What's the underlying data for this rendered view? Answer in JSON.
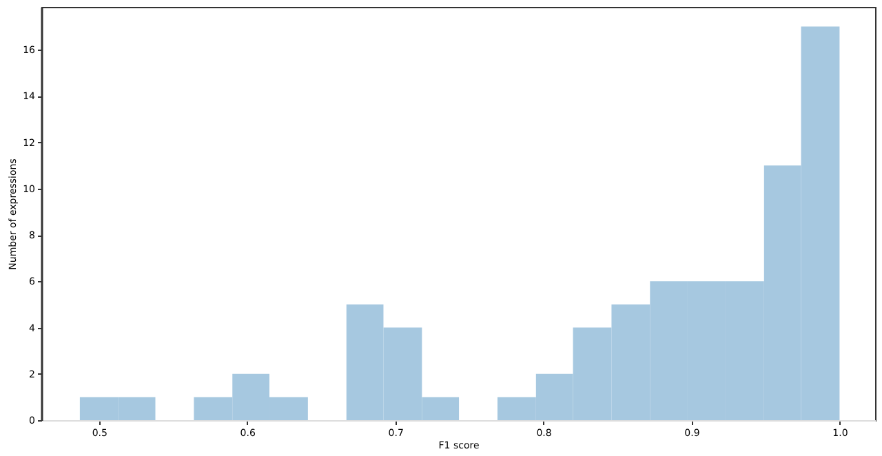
{
  "chart_data": {
    "type": "histogram",
    "xlabel": "F1 score",
    "ylabel": "Number of expressions",
    "bins": [
      0.487,
      0.513,
      0.538,
      0.564,
      0.59,
      0.615,
      0.641,
      0.667,
      0.692,
      0.718,
      0.743,
      0.769,
      0.795,
      0.82,
      0.846,
      0.872,
      0.897,
      0.923,
      0.949,
      0.974,
      1.0
    ],
    "values": [
      1,
      1,
      0,
      1,
      2,
      1,
      0,
      5,
      4,
      1,
      0,
      1,
      2,
      4,
      5,
      6,
      6,
      6,
      11,
      17
    ],
    "color": "#a6c8e0",
    "xlim": [
      0.461,
      1.024
    ],
    "xticks": [
      0.5,
      0.6,
      0.7,
      0.8,
      0.9,
      {
        "value": 1,
        "label": "1.0"
      }
    ],
    "ylim": [
      0,
      17.85
    ],
    "yticks": [
      0,
      2,
      4,
      6,
      8,
      10,
      12,
      14,
      16
    ],
    "grid": false
  }
}
